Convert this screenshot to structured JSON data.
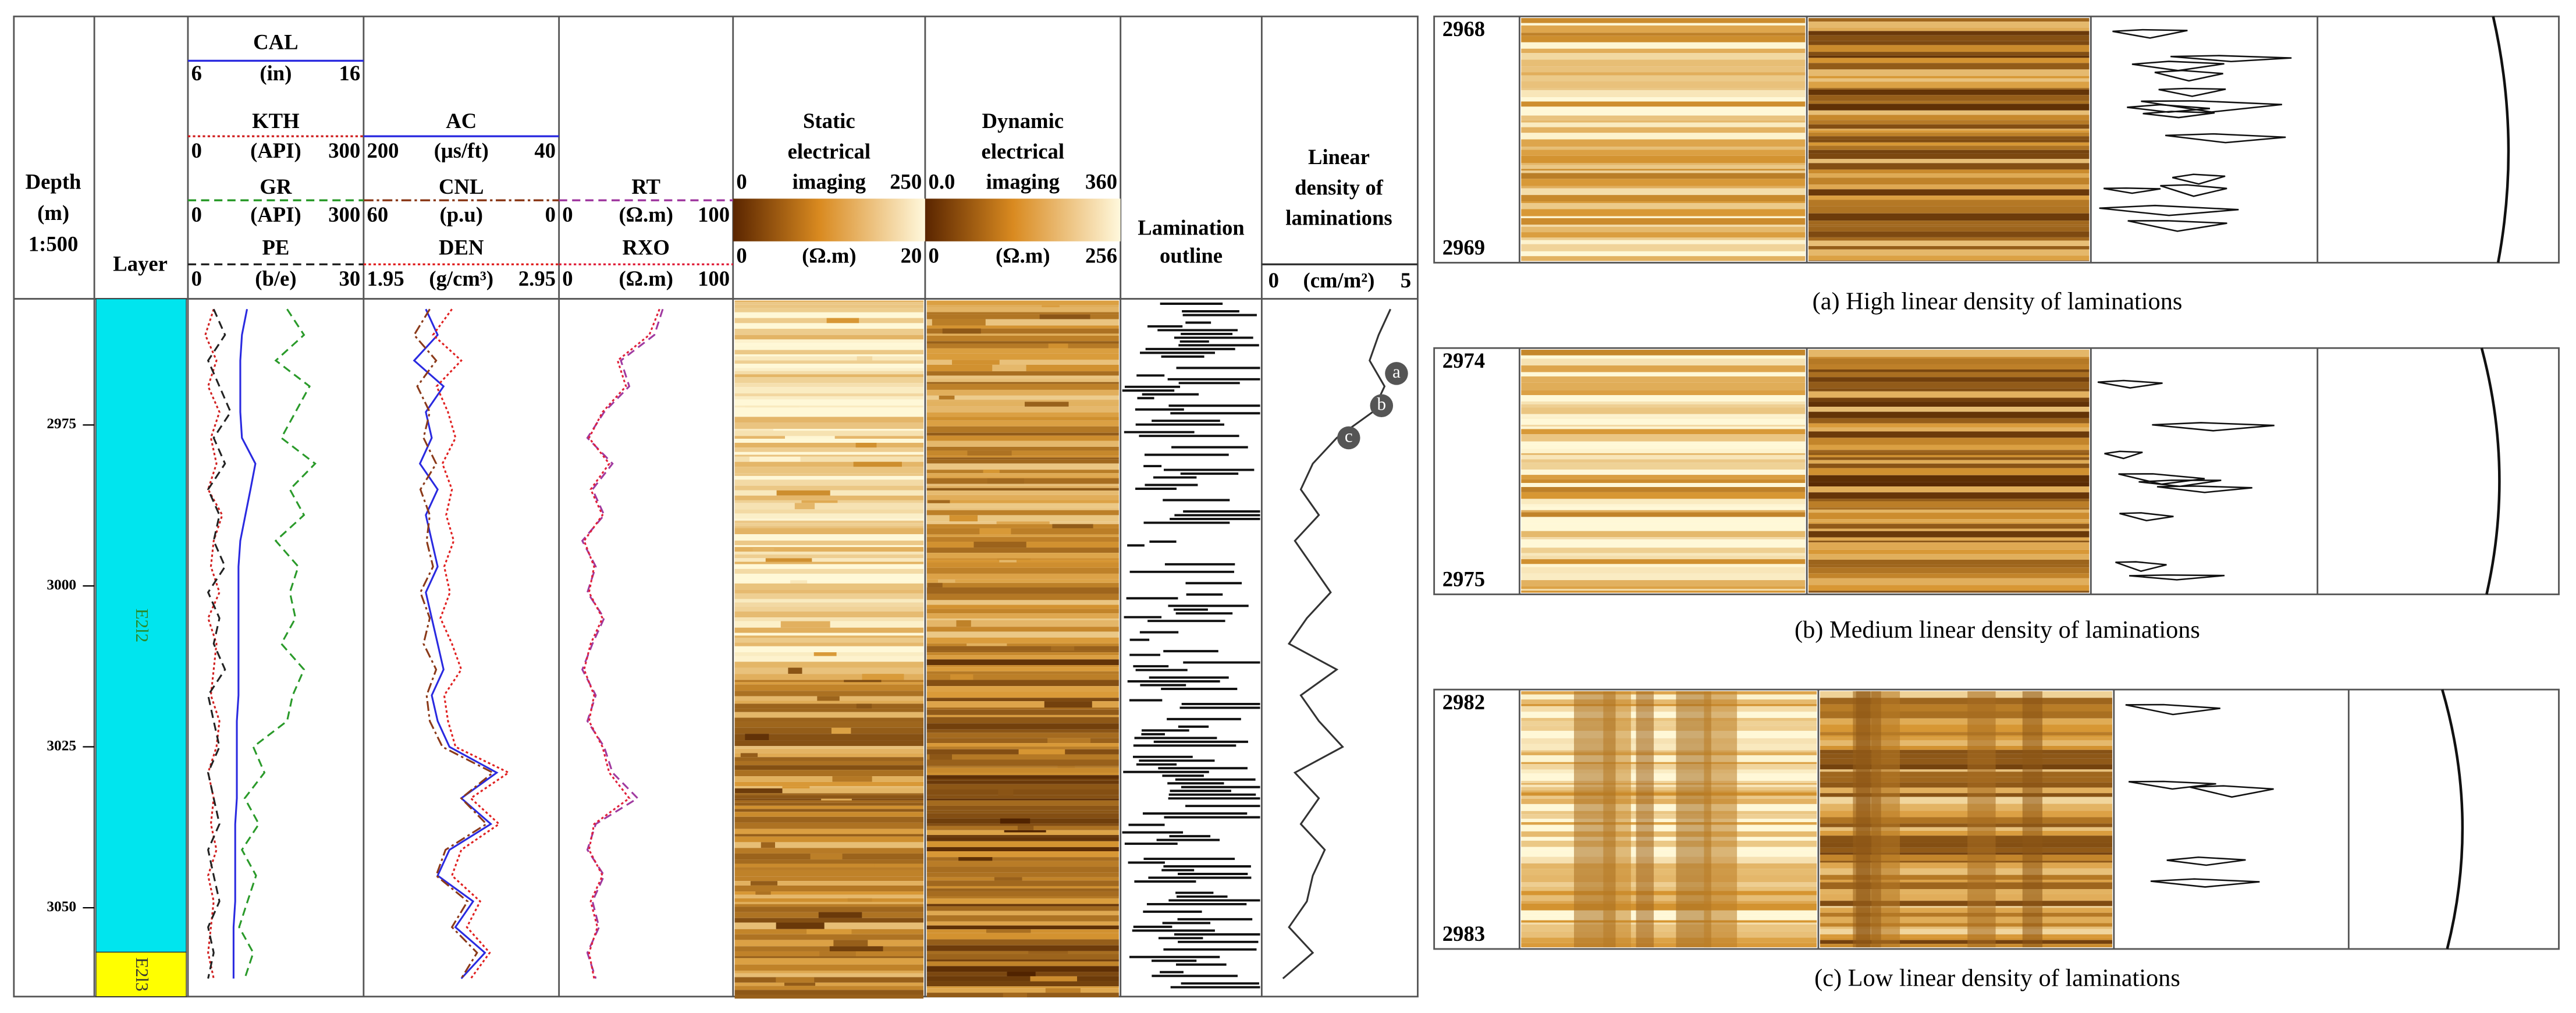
{
  "chart_data": {
    "type": "well-log",
    "depth_header": [
      "Depth",
      "(m)",
      "1:500"
    ],
    "layer_header": "Layer",
    "ylim": [
      2955.4,
      3063.8
    ],
    "yticks": [
      2975,
      3000,
      3025,
      3050
    ],
    "layers": [
      {
        "name": "E2l2",
        "top": 2955.4,
        "bottom": 3056.9,
        "color": "#00e5ee"
      },
      {
        "name": "E2l3",
        "top": 3056.9,
        "bottom": 3063.8,
        "color": "#ffff00"
      }
    ],
    "depth": [
      2957,
      2961,
      2965,
      2969,
      2973,
      2977,
      2981,
      2985,
      2989,
      2993,
      2997,
      3001,
      3005,
      3009,
      3013,
      3017,
      3021,
      3025,
      3029,
      3033,
      3037,
      3041,
      3045,
      3049,
      3053,
      3057,
      3061
    ],
    "tracks": [
      {
        "curves": [
          {
            "name": "CAL",
            "unit": "(in)",
            "xlim": [
              6,
              16
            ],
            "color": "#2a2ae0",
            "dash": "solid",
            "values": [
              9.3,
              9.0,
              8.9,
              8.9,
              8.9,
              9.0,
              9.8,
              9.5,
              9.2,
              8.9,
              8.8,
              8.8,
              8.8,
              8.8,
              8.8,
              8.8,
              8.7,
              8.7,
              8.7,
              8.7,
              8.6,
              8.6,
              8.6,
              8.6,
              8.5,
              8.5,
              8.5
            ]
          },
          {
            "name": "KTH",
            "unit": "(API)",
            "xlim": [
              0,
              300
            ],
            "color": "#d02020",
            "dash": "dotted",
            "values": [
              40,
              25,
              45,
              30,
              50,
              35,
              45,
              30,
              55,
              40,
              35,
              50,
              30,
              45,
              40,
              35,
              50,
              45,
              30,
              40,
              35,
              45,
              30,
              40,
              35,
              30,
              40
            ]
          },
          {
            "name": "GR",
            "unit": "(API)",
            "xlim": [
              0,
              300
            ],
            "color": "#2a9a2a",
            "dash": "dashed",
            "values": [
              170,
              200,
              150,
              210,
              185,
              160,
              220,
              175,
              200,
              150,
              190,
              175,
              185,
              160,
              200,
              180,
              170,
              110,
              130,
              95,
              120,
              90,
              115,
              100,
              85,
              110,
              95
            ]
          },
          {
            "name": "PE",
            "unit": "(b/e)",
            "xlim": [
              0,
              30
            ],
            "color": "#222222",
            "dash": "dashed",
            "values": [
              4,
              6,
              3,
              5,
              7,
              4,
              6,
              3,
              5,
              4,
              6,
              3,
              5,
              4,
              6,
              3,
              4,
              5,
              3,
              4,
              5,
              3,
              4,
              5,
              3,
              4,
              3
            ]
          }
        ]
      },
      {
        "curves": [
          {
            "name": "AC",
            "unit": "(μs/ft)",
            "xlim": [
              200,
              40
            ],
            "color": "#2a2ae0",
            "dash": "solid",
            "values": [
              150,
              140,
              160,
              135,
              150,
              145,
              155,
              140,
              150,
              145,
              140,
              150,
              145,
              140,
              135,
              145,
              140,
              130,
              90,
              120,
              95,
              130,
              140,
              110,
              125,
              100,
              120
            ]
          },
          {
            "name": "CNL",
            "unit": "(p.u)",
            "xlim": [
              60,
              0
            ],
            "color": "#8b3a1a",
            "dash": "dashdot",
            "values": [
              40,
              45,
              38,
              44,
              40,
              42,
              38,
              43,
              40,
              41,
              39,
              43,
              40,
              42,
              38,
              41,
              40,
              36,
              20,
              30,
              22,
              35,
              38,
              28,
              33,
              25,
              30
            ]
          },
          {
            "name": "DEN",
            "unit": "(g/cm³)",
            "xlim": [
              1.95,
              2.95
            ],
            "color": "#e02020",
            "dash": "dotted",
            "values": [
              2.4,
              2.3,
              2.45,
              2.32,
              2.38,
              2.42,
              2.35,
              2.4,
              2.37,
              2.41,
              2.36,
              2.39,
              2.34,
              2.4,
              2.45,
              2.36,
              2.38,
              2.42,
              2.7,
              2.5,
              2.65,
              2.45,
              2.4,
              2.55,
              2.48,
              2.6,
              2.5
            ]
          }
        ]
      },
      {
        "curves": [
          {
            "name": "RT",
            "unit": "(Ω.m)",
            "xlim": [
              0,
              100
            ],
            "color": "#a03aa0",
            "dash": "dashed",
            "values": [
              60,
              55,
              35,
              40,
              25,
              15,
              30,
              18,
              25,
              12,
              20,
              15,
              25,
              18,
              12,
              20,
              15,
              25,
              30,
              45,
              20,
              15,
              25,
              18,
              22,
              15,
              20
            ]
          },
          {
            "name": "RXO",
            "unit": "(Ω.m)",
            "xlim": [
              0,
              100
            ],
            "color": "#e0203a",
            "dash": "dotted",
            "values": [
              58,
              52,
              33,
              38,
              24,
              16,
              28,
              17,
              24,
              13,
              19,
              16,
              24,
              17,
              13,
              19,
              16,
              24,
              28,
              40,
              19,
              16,
              24,
              17,
              21,
              16,
              19
            ]
          }
        ]
      }
    ],
    "images": [
      {
        "title": [
          "Static",
          "electrical",
          "imaging"
        ],
        "scale_top": [
          0,
          250
        ],
        "scale_bottom": [
          0,
          20
        ],
        "unit": "(Ω.m)"
      },
      {
        "title": [
          "Dynamic",
          "electrical",
          "imaging"
        ],
        "scale_top": [
          {
            "value": 0,
            "label": "0.0"
          },
          360
        ],
        "scale_bottom": [
          0,
          256
        ],
        "unit": "(Ω.m)"
      }
    ],
    "outline_title": [
      "Lamination",
      "outline"
    ],
    "density": {
      "title": [
        "Linear",
        "density of",
        "laminations"
      ],
      "unit": "(cm/m²)",
      "xlim": [
        0,
        5
      ],
      "color": "#333333",
      "values": [
        4.2,
        3.8,
        3.5,
        4.0,
        3.6,
        2.4,
        1.6,
        1.2,
        1.8,
        1.0,
        1.6,
        2.2,
        1.4,
        0.8,
        2.4,
        1.2,
        1.8,
        2.6,
        1.0,
        1.8,
        1.2,
        2.0,
        1.6,
        1.4,
        0.8,
        1.6,
        0.6
      ],
      "annotations": [
        {
          "label": "a",
          "depth": 2967,
          "value": 4.4
        },
        {
          "label": "b",
          "depth": 2972,
          "value": 3.9
        },
        {
          "label": "c",
          "depth": 2977,
          "value": 2.8
        }
      ]
    },
    "panels": [
      {
        "top": 2968,
        "bottom": 2969,
        "caption": "(a) High linear density of laminations"
      },
      {
        "top": 2974,
        "bottom": 2975,
        "caption": "(b) Medium linear density of laminations"
      },
      {
        "top": 2982,
        "bottom": 2983,
        "caption": "(c) Low linear density of laminations"
      }
    ]
  }
}
